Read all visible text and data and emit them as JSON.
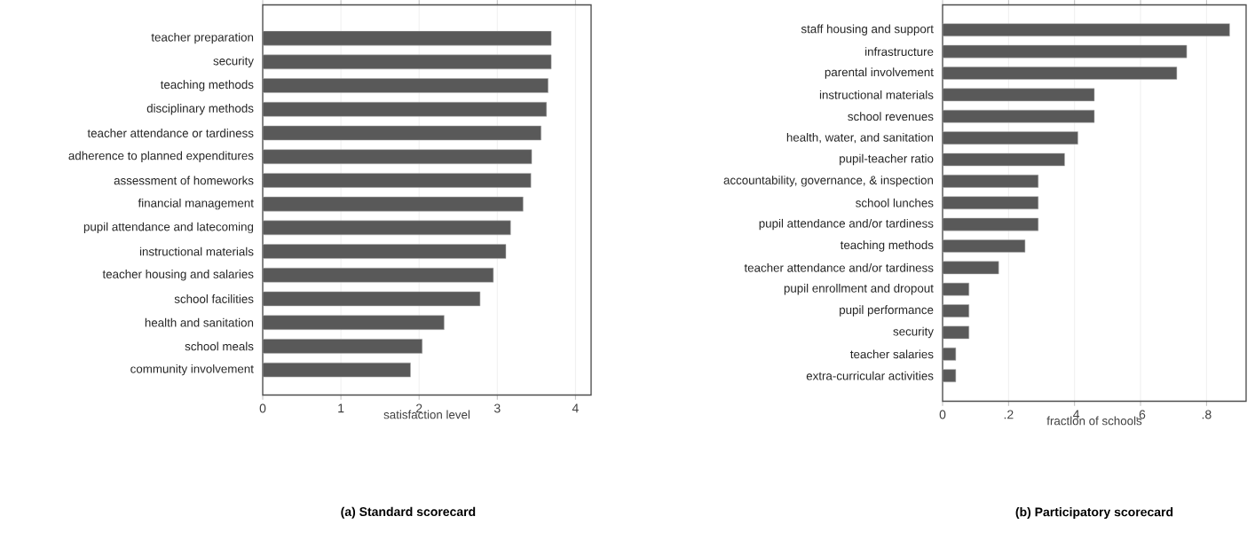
{
  "chart_data": [
    {
      "type": "bar",
      "orientation": "horizontal",
      "title": "(a) Standard scorecard",
      "xlabel": "satisfaction level",
      "categories": [
        "teacher preparation",
        "security",
        "teaching methods",
        "disciplinary methods",
        "teacher attendance or tardiness",
        "adherence to planned expenditures",
        "assessment of homeworks",
        "financial management",
        "pupil attendance and latecoming",
        "instructional materials",
        "teacher housing and salaries",
        "school facilities",
        "health and sanitation",
        "school meals",
        "community involvement"
      ],
      "values": [
        3.69,
        3.69,
        3.65,
        3.63,
        3.56,
        3.44,
        3.43,
        3.33,
        3.17,
        3.11,
        2.95,
        2.78,
        2.32,
        2.04,
        1.89
      ],
      "color": "#595959",
      "xlim": [
        0,
        4.2
      ],
      "xticks": [
        0,
        1,
        2,
        3,
        4
      ],
      "grid": "x"
    },
    {
      "type": "bar",
      "orientation": "horizontal",
      "title": "(b) Participatory scorecard",
      "xlabel": "fraction of schools",
      "categories": [
        "staff housing and support",
        "infrastructure",
        "parental involvement",
        "instructional materials",
        "school revenues",
        "health, water, and sanitation",
        "pupil-teacher ratio",
        "accountability, governance, & inspection",
        "school lunches",
        "pupil attendance and/or tardiness",
        "teaching methods",
        "teacher attendance and/or tardiness",
        "pupil enrollment and dropout",
        "pupil performance",
        "security",
        "teacher salaries",
        "extra-curricular activities"
      ],
      "values": [
        0.87,
        0.74,
        0.71,
        0.46,
        0.46,
        0.41,
        0.37,
        0.29,
        0.29,
        0.29,
        0.25,
        0.17,
        0.08,
        0.08,
        0.08,
        0.04,
        0.04
      ],
      "color": "#595959",
      "xlim": [
        0,
        0.92
      ],
      "xticks": [
        0,
        {
          "value": 0.2,
          "label": ".2"
        },
        {
          "value": 0.4,
          "label": ".4"
        },
        {
          "value": 0.6,
          "label": ".6"
        },
        {
          "value": 0.8,
          "label": ".8"
        }
      ],
      "grid": "x"
    }
  ]
}
